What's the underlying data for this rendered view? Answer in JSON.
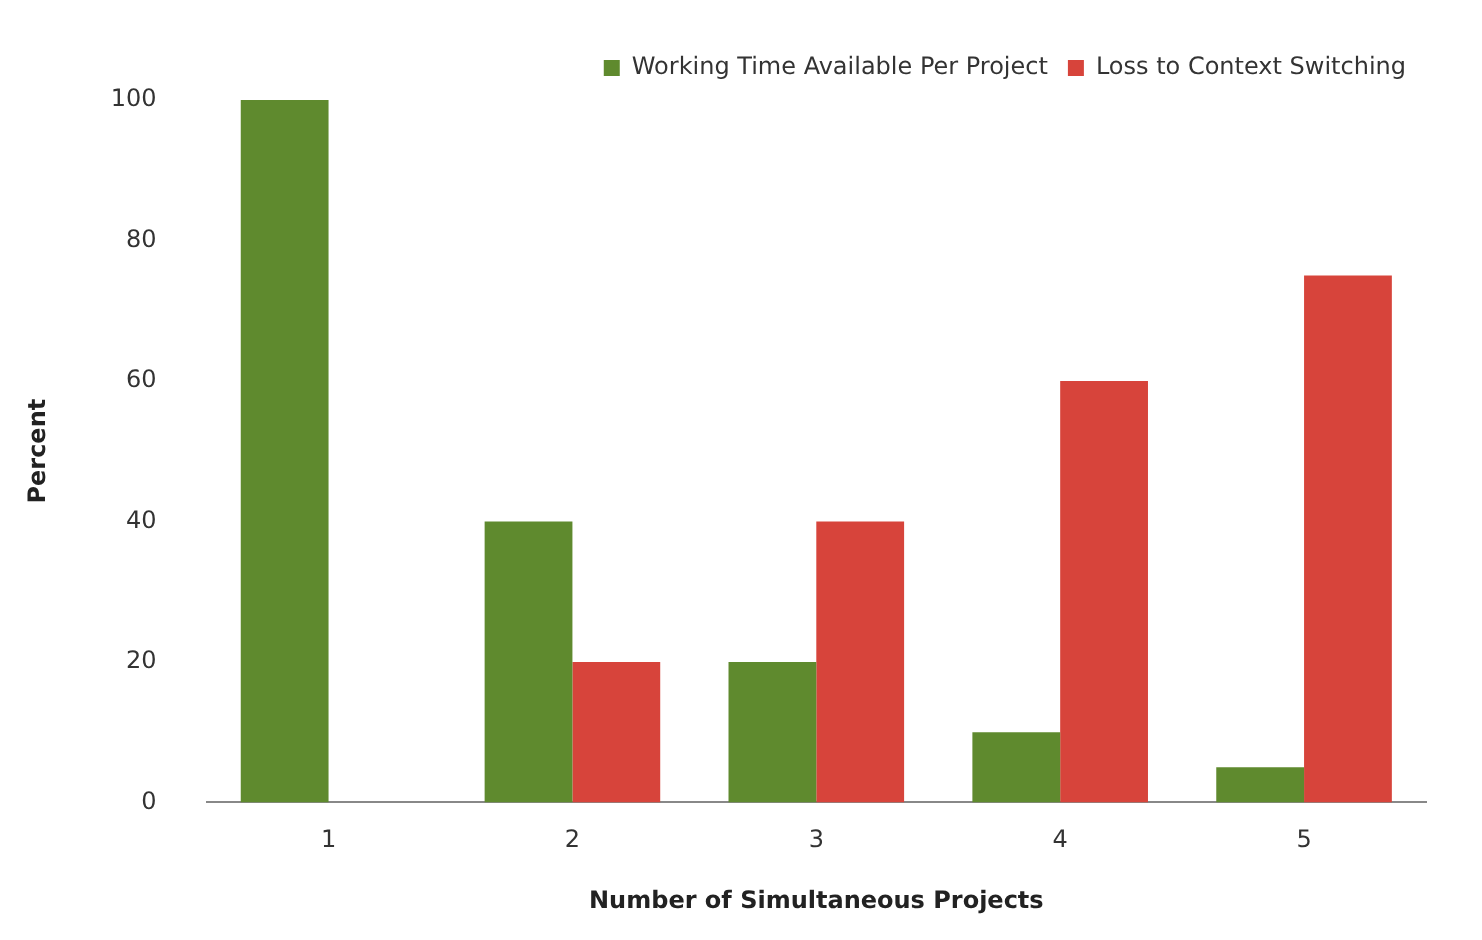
{
  "chart_data": {
    "type": "bar",
    "xlabel": "Number of Simultaneous Projects",
    "ylabel": "Percent",
    "categories": [
      "1",
      "2",
      "3",
      "4",
      "5"
    ],
    "series": [
      {
        "name": "Working Time Available Per Project",
        "color": "#5f8a2e",
        "values": [
          100,
          40,
          20,
          10,
          5
        ]
      },
      {
        "name": "Loss to Context Switching",
        "color": "#d7443b",
        "values": [
          0,
          20,
          40,
          60,
          75
        ]
      }
    ],
    "ylim": [
      0,
      100
    ],
    "yticks": [
      0,
      20,
      40,
      60,
      80,
      100
    ],
    "grid": false,
    "legend": "top right"
  }
}
